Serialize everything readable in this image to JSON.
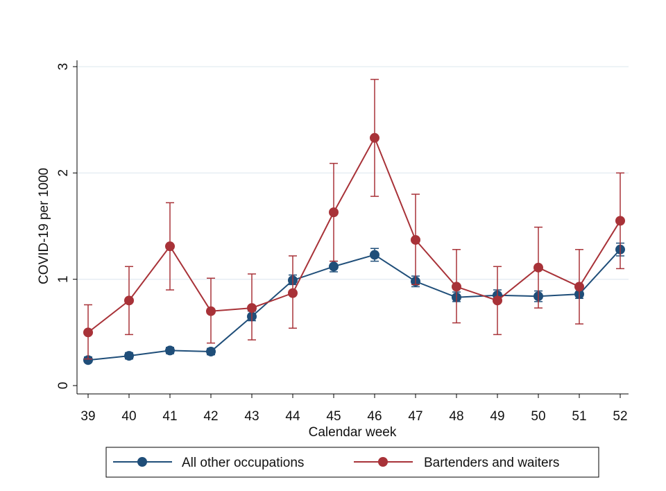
{
  "chart_data": {
    "type": "line",
    "title": "",
    "xlabel": "Calendar week",
    "ylabel": "COVID-19 per 1000",
    "x": [
      39,
      40,
      41,
      42,
      43,
      44,
      45,
      46,
      47,
      48,
      49,
      50,
      51,
      52
    ],
    "ylim": [
      0,
      3
    ],
    "yticks": [
      0,
      1,
      2,
      3
    ],
    "grid": true,
    "legend_position": "bottom",
    "series": [
      {
        "name": "All other occupations",
        "color": "#1f4e79",
        "values": [
          0.24,
          0.28,
          0.33,
          0.32,
          0.65,
          0.99,
          1.12,
          1.23,
          0.98,
          0.83,
          0.85,
          0.84,
          0.86,
          1.28
        ],
        "ci_low": [
          0.22,
          0.25,
          0.3,
          0.29,
          0.61,
          0.95,
          1.07,
          1.17,
          0.93,
          0.79,
          0.81,
          0.79,
          0.82,
          1.22
        ],
        "ci_high": [
          0.27,
          0.31,
          0.36,
          0.35,
          0.7,
          1.04,
          1.17,
          1.29,
          1.03,
          0.88,
          0.9,
          0.89,
          0.91,
          1.34
        ]
      },
      {
        "name": "Bartenders and waiters",
        "color": "#a83238",
        "values": [
          0.5,
          0.8,
          1.31,
          0.7,
          0.73,
          0.87,
          1.63,
          2.33,
          1.37,
          0.93,
          0.8,
          1.11,
          0.93,
          1.55
        ],
        "ci_low": [
          0.25,
          0.48,
          0.9,
          0.4,
          0.43,
          0.54,
          1.17,
          1.78,
          0.95,
          0.59,
          0.48,
          0.73,
          0.58,
          1.1
        ],
        "ci_high": [
          0.76,
          1.12,
          1.72,
          1.01,
          1.05,
          1.22,
          2.09,
          2.88,
          1.8,
          1.28,
          1.12,
          1.49,
          1.28,
          2.0
        ]
      }
    ]
  }
}
